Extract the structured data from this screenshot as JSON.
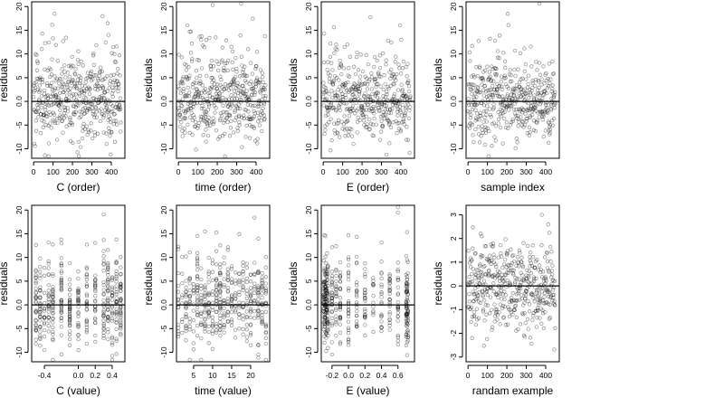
{
  "chart_data": [
    {
      "type": "scatter",
      "xlabel": "C (order)",
      "ylabel": "residuals",
      "xlim": [
        -10,
        470
      ],
      "ylim": [
        -12,
        21
      ],
      "x_ticks": [
        0,
        100,
        200,
        300,
        400
      ],
      "x_tick_labels": [
        "0",
        "100",
        "200",
        "300",
        "400"
      ],
      "y_ticks": [
        -10,
        -5,
        0,
        5,
        10,
        15,
        20
      ],
      "y_tick_labels": [
        "-10",
        "-5",
        "0.0",
        "5",
        "10",
        "15",
        "20"
      ],
      "hline": 0,
      "n_points": 450,
      "x_kind": "order",
      "spread": 4.2
    },
    {
      "type": "scatter",
      "xlabel": "time (order)",
      "ylabel": "residuals",
      "xlim": [
        -10,
        470
      ],
      "ylim": [
        -12,
        21
      ],
      "x_ticks": [
        0,
        100,
        200,
        300,
        400
      ],
      "x_tick_labels": [
        "0",
        "100",
        "200",
        "300",
        "400"
      ],
      "y_ticks": [
        -10,
        -5,
        0,
        5,
        10,
        15,
        20
      ],
      "y_tick_labels": [
        "-10",
        "-5",
        "0.0",
        "5",
        "10",
        "15",
        "20"
      ],
      "hline": 0,
      "n_points": 450,
      "x_kind": "order",
      "spread": 4.2
    },
    {
      "type": "scatter",
      "xlabel": "E (order)",
      "ylabel": "residuals",
      "xlim": [
        -10,
        470
      ],
      "ylim": [
        -12,
        21
      ],
      "x_ticks": [
        0,
        100,
        200,
        300,
        400
      ],
      "x_tick_labels": [
        "0",
        "100",
        "200",
        "300",
        "400"
      ],
      "y_ticks": [
        -10,
        -5,
        0,
        5,
        10,
        15,
        20
      ],
      "y_tick_labels": [
        "-10",
        "-5",
        "0.0",
        "5",
        "10",
        "15",
        "20"
      ],
      "hline": 0,
      "n_points": 450,
      "x_kind": "order",
      "spread": 4.2
    },
    {
      "type": "scatter",
      "xlabel": "sample index",
      "ylabel": "residuals",
      "xlim": [
        -10,
        470
      ],
      "ylim": [
        -12,
        21
      ],
      "x_ticks": [
        0,
        100,
        200,
        300,
        400
      ],
      "x_tick_labels": [
        "0",
        "100",
        "200",
        "300",
        "400"
      ],
      "y_ticks": [
        -10,
        -5,
        0,
        5,
        10,
        15,
        20
      ],
      "y_tick_labels": [
        "-10",
        "-5",
        "0.0",
        "5",
        "10",
        "15",
        "20"
      ],
      "hline": 0,
      "n_points": 450,
      "x_kind": "order",
      "spread": 4.2
    },
    {
      "type": "scatter",
      "xlabel": "C (value)",
      "ylabel": "residuals",
      "xlim": [
        -0.55,
        0.55
      ],
      "ylim": [
        -12,
        21
      ],
      "x_ticks": [
        -0.4,
        0.0,
        0.2,
        0.4
      ],
      "x_tick_labels": [
        "-0.4",
        "0.0",
        "0.2",
        "0.4"
      ],
      "y_ticks": [
        -10,
        -5,
        0,
        5,
        10,
        15,
        20
      ],
      "y_tick_labels": [
        "-10",
        "-5",
        "0.0",
        "5",
        "10",
        "15",
        "20"
      ],
      "hline": 0,
      "n_points": 450,
      "x_kind": "discrete",
      "x_levels": [
        -0.5,
        -0.45,
        -0.4,
        -0.35,
        -0.3,
        -0.2,
        -0.1,
        0.0,
        0.1,
        0.2,
        0.3,
        0.35,
        0.4,
        0.45,
        0.5
      ],
      "spread": 4.2
    },
    {
      "type": "scatter",
      "xlabel": "time (value)",
      "ylabel": "residuals",
      "xlim": [
        0.5,
        25
      ],
      "ylim": [
        -12,
        21
      ],
      "x_ticks": [
        5,
        10,
        15,
        20
      ],
      "x_tick_labels": [
        "5",
        "10",
        "15",
        "20"
      ],
      "y_ticks": [
        -10,
        -5,
        0,
        5,
        10,
        15,
        20
      ],
      "y_tick_labels": [
        "-10",
        "-5",
        "0.0",
        "5",
        "10",
        "15",
        "20"
      ],
      "hline": 0,
      "n_points": 450,
      "x_kind": "discrete",
      "x_levels": [
        1,
        2,
        3,
        4,
        5,
        6,
        7,
        8,
        9,
        10,
        11,
        12,
        13,
        14,
        15,
        16,
        17,
        18,
        19,
        20,
        21,
        22,
        23,
        24
      ],
      "spread": 4.2
    },
    {
      "type": "scatter",
      "xlabel": "E (value)",
      "ylabel": "residuals",
      "xlim": [
        -0.33,
        0.8
      ],
      "ylim": [
        -12,
        21
      ],
      "x_ticks": [
        -0.2,
        0.0,
        0.2,
        0.4,
        0.6
      ],
      "x_tick_labels": [
        "-0.2",
        "0.0",
        "0.2",
        "0.4",
        "0.6"
      ],
      "y_ticks": [
        -10,
        -5,
        0,
        5,
        10,
        15,
        20
      ],
      "y_tick_labels": [
        "-10",
        "-5",
        "0.0",
        "5",
        "10",
        "15",
        "20"
      ],
      "hline": 0,
      "n_points": 450,
      "x_kind": "discrete",
      "x_levels": [
        -0.3,
        -0.29,
        -0.28,
        -0.27,
        -0.26,
        -0.25,
        -0.2,
        -0.15,
        -0.1,
        0.0,
        0.1,
        0.2,
        0.3,
        0.4,
        0.5,
        0.6,
        0.7,
        0.71,
        0.72
      ],
      "spread": 4.2
    },
    {
      "type": "scatter",
      "xlabel": "randam example",
      "ylabel": "residuals",
      "xlim": [
        -10,
        470
      ],
      "ylim": [
        -3.2,
        3.4
      ],
      "x_ticks": [
        0,
        100,
        200,
        300,
        400
      ],
      "x_tick_labels": [
        "0",
        "100",
        "200",
        "300",
        "400"
      ],
      "y_ticks": [
        -3,
        -2,
        -1,
        0,
        1,
        2,
        3
      ],
      "y_tick_labels": [
        "-3",
        "-2",
        "-1",
        "0",
        "1",
        "2",
        "3"
      ],
      "hline": 0,
      "n_points": 450,
      "x_kind": "order",
      "spread": 1.0
    }
  ]
}
